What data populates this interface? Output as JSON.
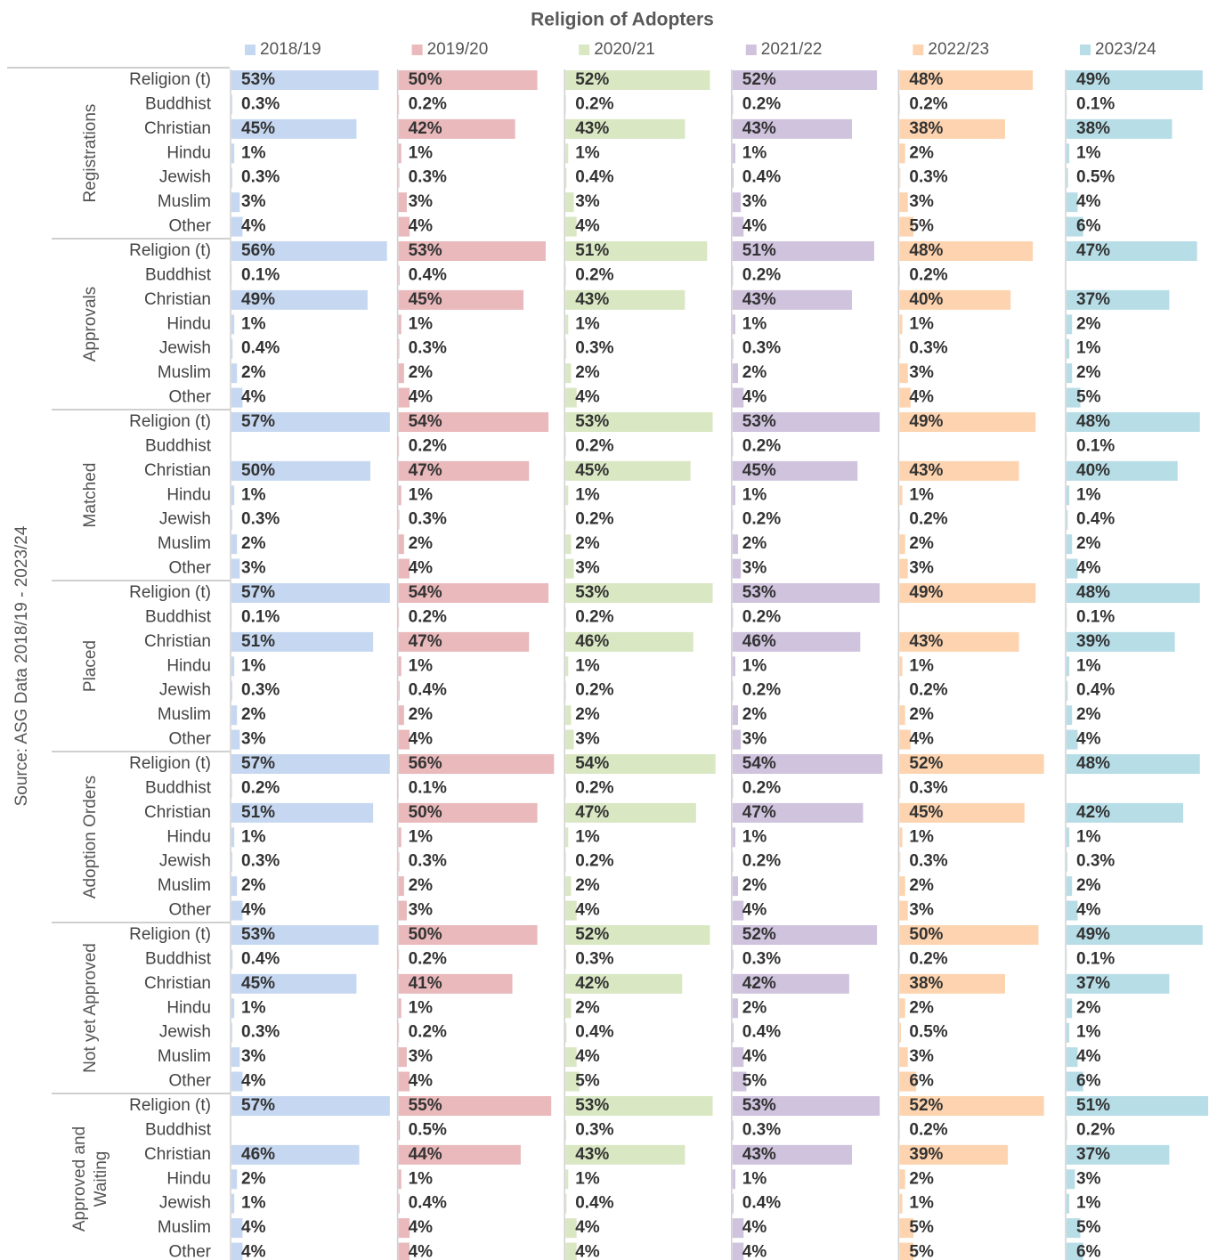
{
  "chart_data": {
    "type": "bar",
    "title": "Religion of Adopters",
    "source": "Source: ASG Data 2018/19 - 2023/24",
    "groups": [
      "Registrations",
      "Approvals",
      "Matched",
      "Placed",
      "Adoption Orders",
      "Not yet Approved",
      "Approved and Waiting"
    ],
    "categories": [
      "Religion (t)",
      "Buddhist",
      "Christian",
      "Hindu",
      "Jewish",
      "Muslim",
      "Other"
    ],
    "series": [
      {
        "name": "2018/19",
        "color": "#c6d8f1",
        "values": [
          [
            53,
            0.3,
            45,
            1,
            0.3,
            3,
            4
          ],
          [
            56,
            0.1,
            49,
            1,
            0.4,
            2,
            4
          ],
          [
            57,
            null,
            50,
            1,
            0.3,
            2,
            3
          ],
          [
            57,
            0.1,
            51,
            1,
            0.3,
            2,
            3
          ],
          [
            57,
            0.2,
            51,
            1,
            0.3,
            2,
            4
          ],
          [
            53,
            0.4,
            45,
            1,
            0.3,
            3,
            4
          ],
          [
            57,
            null,
            46,
            2,
            1,
            4,
            4
          ]
        ],
        "value_labels": [
          [
            "53%",
            "0.3%",
            "45%",
            "1%",
            "0.3%",
            "3%",
            "4%"
          ],
          [
            "56%",
            "0.1%",
            "49%",
            "1%",
            "0.4%",
            "2%",
            "4%"
          ],
          [
            "57%",
            null,
            "50%",
            "1%",
            "0.3%",
            "2%",
            "3%"
          ],
          [
            "57%",
            "0.1%",
            "51%",
            "1%",
            "0.3%",
            "2%",
            "3%"
          ],
          [
            "57%",
            "0.2%",
            "51%",
            "1%",
            "0.3%",
            "2%",
            "4%"
          ],
          [
            "53%",
            "0.4%",
            "45%",
            "1%",
            "0.3%",
            "3%",
            "4%"
          ],
          [
            "57%",
            null,
            "46%",
            "2%",
            "1%",
            "4%",
            "4%"
          ]
        ]
      },
      {
        "name": "2019/20",
        "color": "#e9b9bb",
        "values": [
          [
            50,
            0.2,
            42,
            1,
            0.3,
            3,
            4
          ],
          [
            53,
            0.4,
            45,
            1,
            0.3,
            2,
            4
          ],
          [
            54,
            0.2,
            47,
            1,
            0.3,
            2,
            4
          ],
          [
            54,
            0.2,
            47,
            1,
            0.4,
            2,
            4
          ],
          [
            56,
            0.1,
            50,
            1,
            0.3,
            2,
            3
          ],
          [
            50,
            0.2,
            41,
            1,
            0.2,
            3,
            4
          ],
          [
            55,
            0.5,
            44,
            1,
            0.4,
            4,
            4
          ]
        ],
        "value_labels": [
          [
            "50%",
            "0.2%",
            "42%",
            "1%",
            "0.3%",
            "3%",
            "4%"
          ],
          [
            "53%",
            "0.4%",
            "45%",
            "1%",
            "0.3%",
            "2%",
            "4%"
          ],
          [
            "54%",
            "0.2%",
            "47%",
            "1%",
            "0.3%",
            "2%",
            "4%"
          ],
          [
            "54%",
            "0.2%",
            "47%",
            "1%",
            "0.4%",
            "2%",
            "4%"
          ],
          [
            "56%",
            "0.1%",
            "50%",
            "1%",
            "0.3%",
            "2%",
            "3%"
          ],
          [
            "50%",
            "0.2%",
            "41%",
            "1%",
            "0.2%",
            "3%",
            "4%"
          ],
          [
            "55%",
            "0.5%",
            "44%",
            "1%",
            "0.4%",
            "4%",
            "4%"
          ]
        ]
      },
      {
        "name": "2020/21",
        "color": "#d9e7c3",
        "values": [
          [
            52,
            0.2,
            43,
            1,
            0.4,
            3,
            4
          ],
          [
            51,
            0.2,
            43,
            1,
            0.3,
            2,
            4
          ],
          [
            53,
            0.2,
            45,
            1,
            0.2,
            2,
            3
          ],
          [
            53,
            0.2,
            46,
            1,
            0.2,
            2,
            3
          ],
          [
            54,
            0.2,
            47,
            1,
            0.2,
            2,
            4
          ],
          [
            52,
            0.3,
            42,
            2,
            0.4,
            4,
            5
          ],
          [
            53,
            0.3,
            43,
            1,
            0.4,
            4,
            4
          ]
        ],
        "value_labels": [
          [
            "52%",
            "0.2%",
            "43%",
            "1%",
            "0.4%",
            "3%",
            "4%"
          ],
          [
            "51%",
            "0.2%",
            "43%",
            "1%",
            "0.3%",
            "2%",
            "4%"
          ],
          [
            "53%",
            "0.2%",
            "45%",
            "1%",
            "0.2%",
            "2%",
            "3%"
          ],
          [
            "53%",
            "0.2%",
            "46%",
            "1%",
            "0.2%",
            "2%",
            "3%"
          ],
          [
            "54%",
            "0.2%",
            "47%",
            "1%",
            "0.2%",
            "2%",
            "4%"
          ],
          [
            "52%",
            "0.3%",
            "42%",
            "2%",
            "0.4%",
            "4%",
            "5%"
          ],
          [
            "53%",
            "0.3%",
            "43%",
            "1%",
            "0.4%",
            "4%",
            "4%"
          ]
        ]
      },
      {
        "name": "2021/22",
        "color": "#cfc3de",
        "values": [
          [
            52,
            0.2,
            43,
            1,
            0.4,
            3,
            4
          ],
          [
            51,
            0.2,
            43,
            1,
            0.3,
            2,
            4
          ],
          [
            53,
            0.2,
            45,
            1,
            0.2,
            2,
            3
          ],
          [
            53,
            0.2,
            46,
            1,
            0.2,
            2,
            3
          ],
          [
            54,
            0.2,
            47,
            1,
            0.2,
            2,
            4
          ],
          [
            52,
            0.3,
            42,
            2,
            0.4,
            4,
            5
          ],
          [
            53,
            0.3,
            43,
            1,
            0.4,
            4,
            4
          ]
        ],
        "value_labels": [
          [
            "52%",
            "0.2%",
            "43%",
            "1%",
            "0.4%",
            "3%",
            "4%"
          ],
          [
            "51%",
            "0.2%",
            "43%",
            "1%",
            "0.3%",
            "2%",
            "4%"
          ],
          [
            "53%",
            "0.2%",
            "45%",
            "1%",
            "0.2%",
            "2%",
            "3%"
          ],
          [
            "53%",
            "0.2%",
            "46%",
            "1%",
            "0.2%",
            "2%",
            "3%"
          ],
          [
            "54%",
            "0.2%",
            "47%",
            "1%",
            "0.2%",
            "2%",
            "4%"
          ],
          [
            "52%",
            "0.3%",
            "42%",
            "2%",
            "0.4%",
            "4%",
            "5%"
          ],
          [
            "53%",
            "0.3%",
            "43%",
            "1%",
            "0.4%",
            "4%",
            "4%"
          ]
        ]
      },
      {
        "name": "2022/23",
        "color": "#fdd4af",
        "values": [
          [
            48,
            0.2,
            38,
            2,
            0.3,
            3,
            5
          ],
          [
            48,
            0.2,
            40,
            1,
            0.3,
            3,
            4
          ],
          [
            49,
            null,
            43,
            1,
            0.2,
            2,
            3
          ],
          [
            49,
            null,
            43,
            1,
            0.2,
            2,
            4
          ],
          [
            52,
            0.3,
            45,
            1,
            0.3,
            2,
            3
          ],
          [
            50,
            0.2,
            38,
            2,
            0.5,
            3,
            6
          ],
          [
            52,
            0.2,
            39,
            2,
            1,
            5,
            5
          ]
        ],
        "value_labels": [
          [
            "48%",
            "0.2%",
            "38%",
            "2%",
            "0.3%",
            "3%",
            "5%"
          ],
          [
            "48%",
            "0.2%",
            "40%",
            "1%",
            "0.3%",
            "3%",
            "4%"
          ],
          [
            "49%",
            null,
            "43%",
            "1%",
            "0.2%",
            "2%",
            "3%"
          ],
          [
            "49%",
            null,
            "43%",
            "1%",
            "0.2%",
            "2%",
            "4%"
          ],
          [
            "52%",
            "0.3%",
            "45%",
            "1%",
            "0.3%",
            "2%",
            "3%"
          ],
          [
            "50%",
            "0.2%",
            "38%",
            "2%",
            "0.5%",
            "3%",
            "6%"
          ],
          [
            "52%",
            "0.2%",
            "39%",
            "2%",
            "1%",
            "5%",
            "5%"
          ]
        ]
      },
      {
        "name": "2023/24",
        "color": "#b7dde7",
        "values": [
          [
            49,
            0.1,
            38,
            1,
            0.5,
            4,
            6
          ],
          [
            47,
            null,
            37,
            2,
            1,
            2,
            5
          ],
          [
            48,
            0.1,
            40,
            1,
            0.4,
            2,
            4
          ],
          [
            48,
            0.1,
            39,
            1,
            0.4,
            2,
            4
          ],
          [
            48,
            null,
            42,
            1,
            0.3,
            2,
            4
          ],
          [
            49,
            0.1,
            37,
            2,
            1,
            4,
            6
          ],
          [
            51,
            0.2,
            37,
            3,
            1,
            5,
            6
          ]
        ],
        "value_labels": [
          [
            "49%",
            "0.1%",
            "38%",
            "1%",
            "0.5%",
            "4%",
            "6%"
          ],
          [
            "47%",
            null,
            "37%",
            "2%",
            "1%",
            "2%",
            "5%"
          ],
          [
            "48%",
            "0.1%",
            "40%",
            "1%",
            "0.4%",
            "2%",
            "4%"
          ],
          [
            "48%",
            "0.1%",
            "39%",
            "1%",
            "0.4%",
            "2%",
            "4%"
          ],
          [
            "48%",
            null,
            "42%",
            "1%",
            "0.3%",
            "2%",
            "4%"
          ],
          [
            "49%",
            "0.1%",
            "37%",
            "2%",
            "1%",
            "4%",
            "6%"
          ],
          [
            "51%",
            "0.2%",
            "37%",
            "3%",
            "1%",
            "5%",
            "6%"
          ]
        ]
      }
    ]
  }
}
